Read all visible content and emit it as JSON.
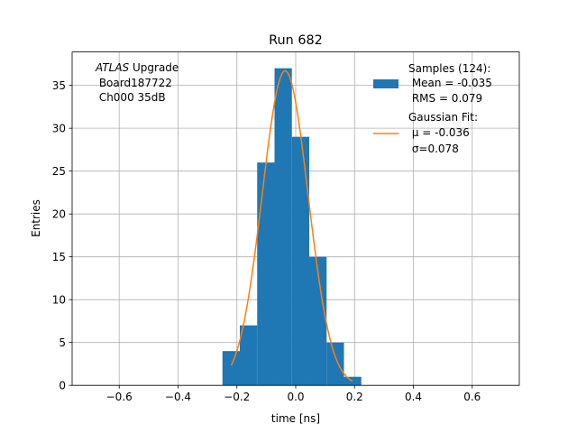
{
  "chart_data": {
    "type": "bar",
    "title": "Run 682",
    "xlabel": "time [ns]",
    "ylabel": "Entries",
    "xlim": [
      -0.76,
      0.76
    ],
    "ylim": [
      0,
      38.9
    ],
    "grid": true,
    "xticks": [
      -0.6,
      -0.4,
      -0.2,
      0.0,
      0.2,
      0.4,
      0.6
    ],
    "xtick_labels": [
      "−0.6",
      "−0.4",
      "−0.2",
      "0.0",
      "0.2",
      "0.4",
      "0.6"
    ],
    "yticks": [
      0,
      5,
      10,
      15,
      20,
      25,
      30,
      35
    ],
    "ytick_labels": [
      "0",
      "5",
      "10",
      "15",
      "20",
      "25",
      "30",
      "35"
    ],
    "annotation": {
      "italic": "ATLAS",
      "line1_rest": " Upgrade",
      "line2": " Board187722",
      "line3": " Ch000 35dB"
    },
    "legend_position": "top-right",
    "colors": {
      "histogram": "#1f77b4",
      "fit": "#ff7f0e"
    },
    "histogram": {
      "name_lines": [
        "Samples (124):",
        " Mean = -0.035",
        " RMS = 0.079"
      ],
      "bin_edges": [
        -0.249,
        -0.19,
        -0.131,
        -0.072,
        -0.013,
        0.046,
        0.105,
        0.164,
        0.223
      ],
      "counts": [
        4,
        7,
        26,
        37,
        29,
        15,
        5,
        1
      ]
    },
    "fit": {
      "name_lines": [
        "Gaussian Fit:",
        " μ = -0.036",
        " σ=0.078"
      ],
      "mu": -0.036,
      "sigma": 0.078,
      "amplitude": 36.7,
      "x_range": [
        -0.219,
        0.193
      ]
    }
  }
}
